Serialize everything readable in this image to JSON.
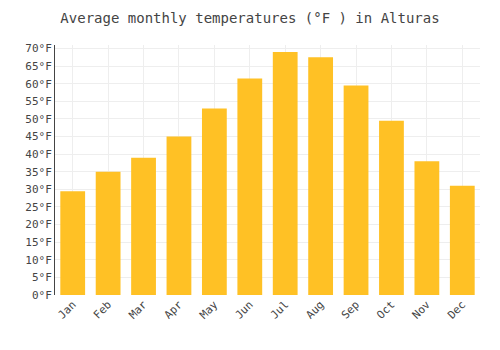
{
  "chart_data": {
    "type": "bar",
    "title": "Average monthly temperatures (°F ) in Alturas",
    "categories": [
      "Jan",
      "Feb",
      "Mar",
      "Apr",
      "May",
      "Jun",
      "Jul",
      "Aug",
      "Sep",
      "Oct",
      "Nov",
      "Dec"
    ],
    "values": [
      29.5,
      35,
      39,
      45,
      53,
      61.5,
      69,
      67.5,
      59.5,
      49.5,
      38,
      31
    ],
    "color": "#FFC125",
    "ylim": [
      0,
      71
    ],
    "yticks": [
      {
        "value": 0,
        "label": "0°F"
      },
      {
        "value": 5,
        "label": "5°F"
      },
      {
        "value": 10,
        "label": "10°F"
      },
      {
        "value": 15,
        "label": "15°F"
      },
      {
        "value": 20,
        "label": "20°F"
      },
      {
        "value": 25,
        "label": "25°F"
      },
      {
        "value": 30,
        "label": "30°F"
      },
      {
        "value": 35,
        "label": "35°F"
      },
      {
        "value": 40,
        "label": "40°F"
      },
      {
        "value": 45,
        "label": "45°F"
      },
      {
        "value": 50,
        "label": "50°F"
      },
      {
        "value": 55,
        "label": "55°F"
      },
      {
        "value": 60,
        "label": "60°F"
      },
      {
        "value": 65,
        "label": "65°F"
      },
      {
        "value": 70,
        "label": "70°F"
      }
    ],
    "grid": true
  }
}
